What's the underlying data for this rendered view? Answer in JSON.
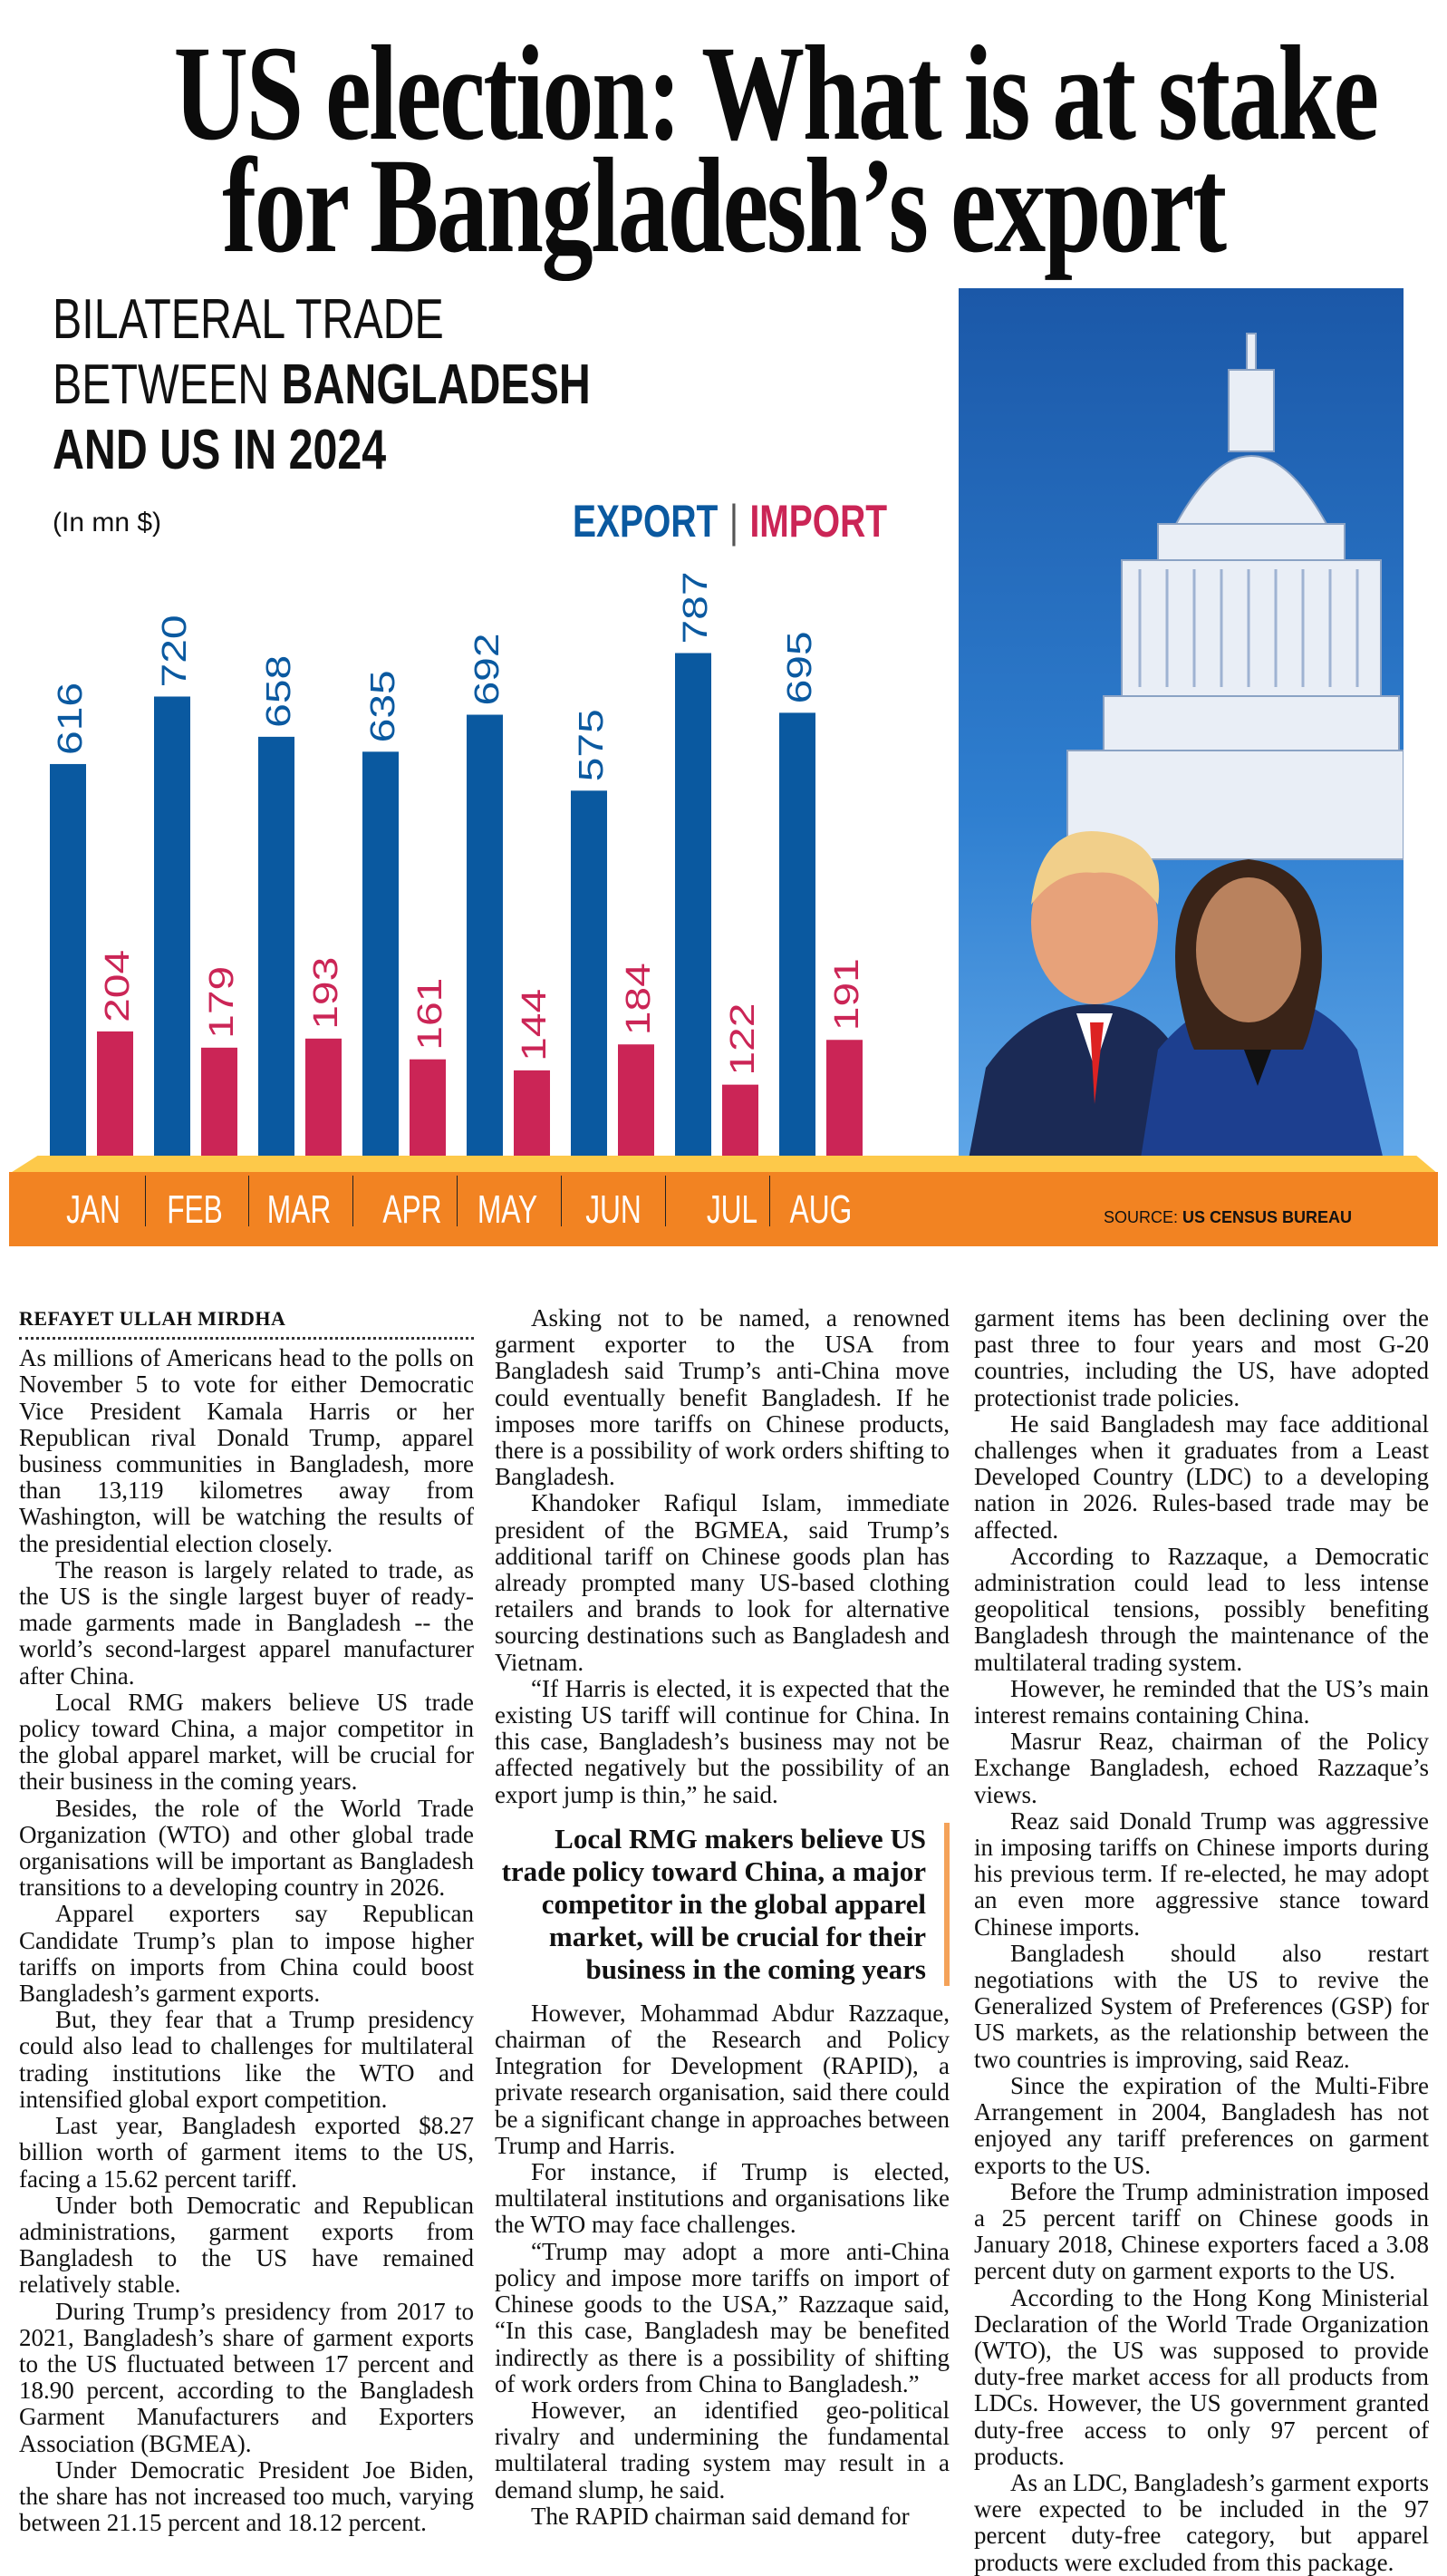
{
  "headline": {
    "line1": "US election: What is at stake",
    "line2": "for Bangladesh’s export"
  },
  "chart_data": {
    "type": "bar",
    "title_lines": [
      "BILATERAL TRADE",
      "BETWEEN",
      "BANGLADESH",
      "AND US IN 2024"
    ],
    "unit": "(In mn $)",
    "legend": {
      "export": "EXPORT",
      "separator": "|",
      "import": "IMPORT"
    },
    "categories": [
      "JAN",
      "FEB",
      "MAR",
      "APR",
      "MAY",
      "JUN",
      "JUL",
      "AUG"
    ],
    "series": [
      {
        "name": "EXPORT",
        "color": "#0a59a0",
        "values": [
          616,
          720,
          658,
          635,
          692,
          575,
          787,
          695
        ]
      },
      {
        "name": "IMPORT",
        "color": "#cb2556",
        "values": [
          204,
          179,
          193,
          161,
          144,
          184,
          122,
          191
        ]
      }
    ],
    "ylim": [
      0,
      800
    ],
    "source_label": "SOURCE:",
    "source": "US CENSUS BUREAU"
  },
  "article": {
    "byline": "REFAYET ULLAH MIRDHA",
    "col1": [
      "As millions of Americans head to the polls on November 5 to vote for either Democratic Vice President Kamala Harris or her Republican rival Donald Trump, apparel business communities in Bangladesh, more than 13,119 kilometres away from Washington, will be watching the results of the presidential election closely.",
      "The reason is largely related to trade, as the US is the single largest buyer of ready-made garments made in Bangladesh -- the world’s second-largest apparel manufacturer after China.",
      "Local RMG makers believe US trade policy toward China, a major competitor in the global apparel market, will be crucial for their business in the coming years.",
      "Besides, the role of the World Trade Organization (WTO) and other global trade organisations will be important as Bangladesh transitions to a developing country in 2026.",
      "Apparel exporters say Republican Candidate Trump’s plan to impose higher tariffs on imports from China could boost Bangladesh’s garment exports.",
      "But, they fear that a Trump presidency could also lead to challenges for multilateral trading institutions like the WTO and intensified global export competition.",
      "Last year, Bangladesh exported $8.27 billion worth of garment items to the US, facing a 15.62 percent tariff.",
      "Under both Democratic and Republican administrations, garment exports from Bangladesh to the US have remained relatively stable.",
      "During Trump’s presidency from 2017 to 2021, Bangladesh’s share of garment exports to the US fluctuated between 17 percent and 18.90 percent, according to the Bangladesh Garment Manufacturers and Exporters Association (BGMEA).",
      "Under Democratic President Joe Biden, the share has not increased too much, varying between 21.15 percent and 18.12 percent."
    ],
    "col2a": [
      "Asking not to be named, a renowned garment exporter to the USA from Bangladesh said Trump’s anti-China move could eventually benefit Bangladesh. If he imposes more tariffs on Chinese products, there is a possibility of work orders shifting to Bangladesh.",
      "Khandoker Rafiqul Islam, immediate president of the BGMEA, said Trump’s additional tariff on Chinese goods plan has already prompted many US-based clothing retailers and brands to look for alternative sourcing destinations such as Bangladesh and Vietnam.",
      "“If Harris is elected, it is expected that the existing US tariff will continue for China. In this case, Bangladesh’s business may not be affected negatively but the possibility of an export jump is thin,” he said."
    ],
    "pull_quote": "Local RMG makers believe US trade policy toward China, a major competitor in the global apparel market, will be crucial for their business in the coming years",
    "col2b": [
      "However, Mohammad Abdur Razzaque, chairman of the Research and Policy Integration for Development (RAPID), a private research organisation, said there could be a significant change in approaches between Trump and Harris.",
      "For instance, if Trump is elected, multilateral institutions and organisations like the WTO may face challenges.",
      "“Trump may adopt a more anti-China policy and impose more tariffs on import of Chinese goods to the USA,” Razzaque said, “In this case, Bangladesh may be benefited indirectly as there is a possibility of shifting of work orders from China to Bangladesh.”",
      "However, an identified geo-political rivalry and undermining the fundamental multilateral trading system may result in a demand slump, he said.",
      "The RAPID chairman said demand for"
    ],
    "col3": [
      "garment items has been declining over the past three to four years and most G-20 countries, including the US, have adopted protectionist trade policies.",
      "He said Bangladesh may face additional challenges when it graduates from a Least Developed Country (LDC) to a developing nation in 2026. Rules-based trade may be affected.",
      "According to Razzaque, a Democratic administration could lead to less intense geopolitical tensions, possibly benefiting Bangladesh through the maintenance of the multilateral trading system.",
      "However, he reminded that the US’s main interest remains containing China.",
      "Masrur Reaz, chairman of the Policy Exchange Bangladesh, echoed Razzaque’s views.",
      "Reaz said Donald Trump was aggressive in imposing tariffs on Chinese imports during his previous term. If re-elected, he may adopt an even more aggressive stance toward Chinese imports.",
      "Bangladesh should also restart negotiations with the US to revive the Generalized System of Preferences (GSP) for US markets, as the relationship between the two countries is improving, said Reaz.",
      "Since the expiration of the Multi-Fibre Arrangement in 2004, Bangladesh has not enjoyed any tariff preferences on garment exports to the US.",
      "Before the Trump administration imposed a 25 percent tariff on Chinese goods in January 2018, Chinese exporters faced a 3.08 percent duty on garment exports to the US.",
      "According to the Hong Kong Ministerial Declaration of the World Trade Organization (WTO), the US was supposed to provide duty-free market access for all products from LDCs. However, the US government granted duty-free access to only 97 percent of products.",
      "As an LDC, Bangladesh’s garment exports were expected to be included in the 97 percent duty-free category, but apparel products were excluded from this package."
    ]
  }
}
